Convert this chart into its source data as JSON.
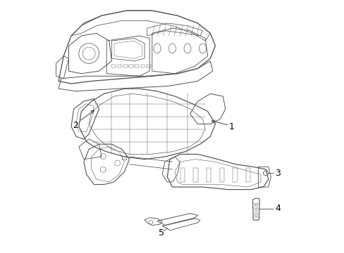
{
  "title": "",
  "background_color": "#ffffff",
  "line_color": "#555555",
  "line_width": 0.8,
  "label_color": "#000000",
  "label_fontsize": 9,
  "figsize": [
    4.89,
    3.6
  ],
  "dpi": 100
}
